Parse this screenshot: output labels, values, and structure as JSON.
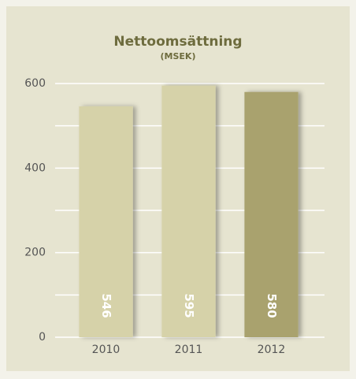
{
  "chart_data": {
    "type": "bar",
    "title": "Nettoomsättning",
    "subtitle": "(MSEK)",
    "categories": [
      "2010",
      "2011",
      "2012"
    ],
    "values": [
      546,
      595,
      580
    ],
    "colors": [
      "#d6d2a9",
      "#d6d2a9",
      "#a9a26e"
    ],
    "ylim": [
      0,
      600
    ],
    "yticks": [
      0,
      200,
      400,
      600
    ],
    "minor_yticks": [
      100,
      300,
      500
    ],
    "grid": true
  }
}
